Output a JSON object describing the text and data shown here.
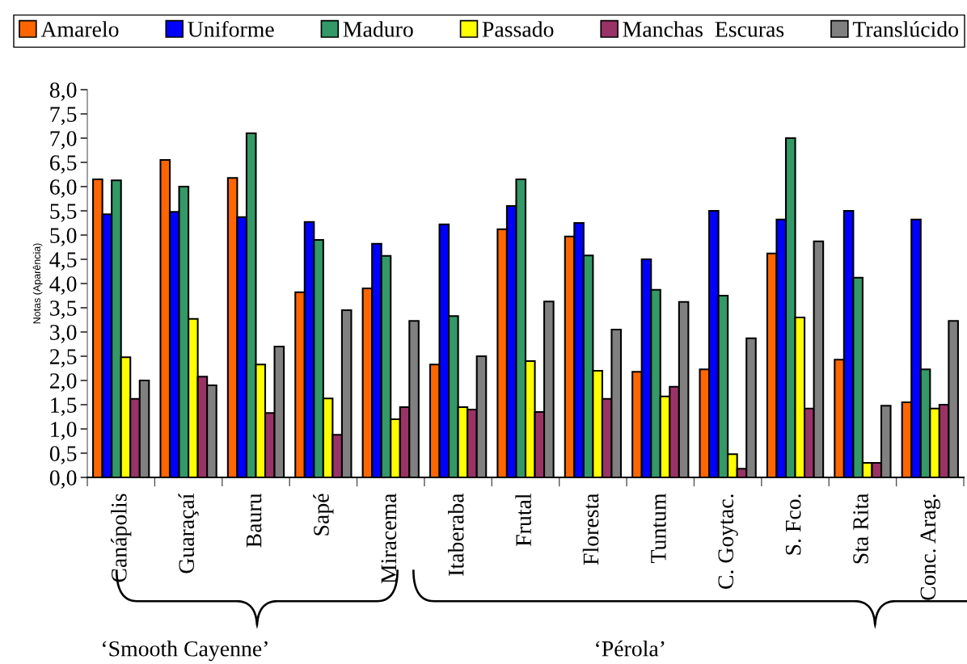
{
  "chart_data": {
    "type": "bar",
    "ylabel": "Notas (Aparência)",
    "categories": [
      "Canápolis",
      "Guaraçaí",
      "Bauru",
      "Sapé",
      "Miracema",
      "Itaberaba",
      "Frutal",
      "Floresta",
      "Tuntum",
      "C. Goytac.",
      "S. Fco.",
      "Sta Rita",
      "Conc. Arag."
    ],
    "series": [
      {
        "name": "Amarelo",
        "color": "#ff6600",
        "values": [
          6.15,
          6.55,
          6.18,
          3.82,
          3.9,
          2.33,
          5.12,
          4.97,
          2.18,
          2.23,
          4.62,
          2.43,
          1.55
        ]
      },
      {
        "name": "Uniforme",
        "color": "#0000ff",
        "values": [
          5.43,
          5.48,
          5.37,
          5.27,
          4.82,
          5.22,
          5.6,
          5.25,
          4.5,
          5.5,
          5.32,
          5.5,
          5.32
        ]
      },
      {
        "name": "Maduro",
        "color": "#339966",
        "values": [
          6.13,
          6.0,
          7.1,
          4.9,
          4.57,
          3.33,
          6.15,
          4.58,
          3.87,
          3.75,
          7.0,
          4.12,
          2.23
        ]
      },
      {
        "name": "Passado",
        "color": "#ffff00",
        "values": [
          2.48,
          3.27,
          2.33,
          1.63,
          1.2,
          1.45,
          2.4,
          2.2,
          1.67,
          0.48,
          3.3,
          0.3,
          1.42
        ]
      },
      {
        "name": "Manchas  Escuras",
        "color": "#993366",
        "values": [
          1.62,
          2.08,
          1.33,
          0.88,
          1.45,
          1.4,
          1.35,
          1.62,
          1.87,
          0.18,
          1.42,
          0.3,
          1.5
        ]
      },
      {
        "name": "Translúcido",
        "color": "#808080",
        "values": [
          2.0,
          1.9,
          2.7,
          3.45,
          3.23,
          2.5,
          3.63,
          3.05,
          3.62,
          2.87,
          4.87,
          1.48,
          3.23
        ]
      }
    ],
    "ylim": [
      0,
      8
    ],
    "yticks": [
      {
        "value": 0,
        "label": "0,0"
      },
      {
        "value": 0.5,
        "label": "0,5"
      },
      {
        "value": 1,
        "label": "1,0"
      },
      {
        "value": 1.5,
        "label": "1,5"
      },
      {
        "value": 2,
        "label": "2,0"
      },
      {
        "value": 2.5,
        "label": "2,5"
      },
      {
        "value": 3,
        "label": "3,0"
      },
      {
        "value": 3.5,
        "label": "3,5"
      },
      {
        "value": 4,
        "label": "4,0"
      },
      {
        "value": 4.5,
        "label": "4,5"
      },
      {
        "value": 5,
        "label": "5,0"
      },
      {
        "value": 5.5,
        "label": "5,5"
      },
      {
        "value": 6,
        "label": "6,0"
      },
      {
        "value": 6.5,
        "label": "6,5"
      },
      {
        "value": 7,
        "label": "7,0"
      },
      {
        "value": 7.5,
        "label": "7,5"
      },
      {
        "value": 8,
        "label": "8,0"
      }
    ],
    "legend": "top",
    "annotations": [
      "‘Smooth Cayenne’",
      "‘Pérola’"
    ]
  }
}
